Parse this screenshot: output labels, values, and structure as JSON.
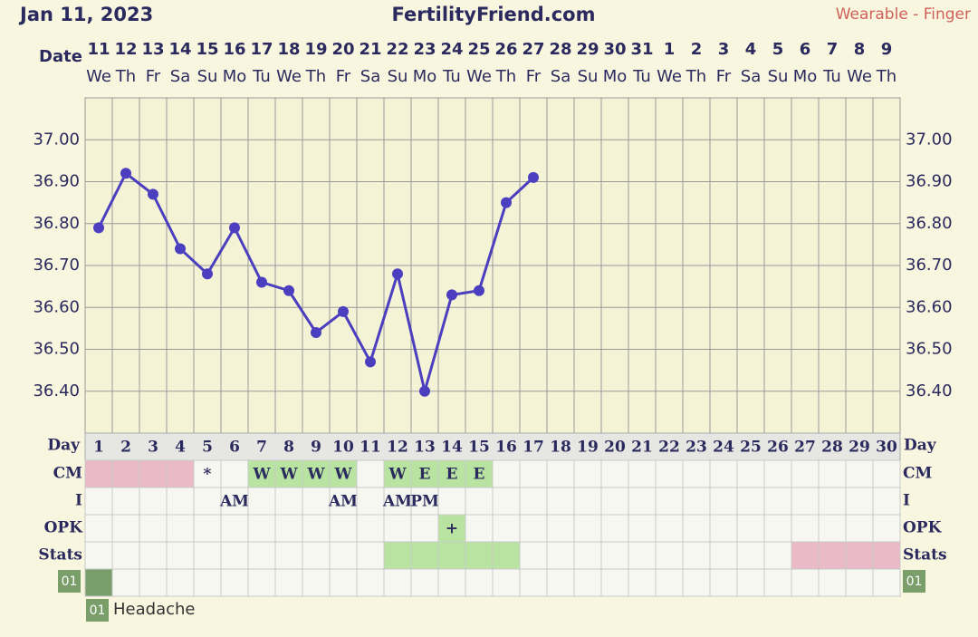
{
  "header": {
    "date": "Jan 11, 2023",
    "site": "FertilityFriend.com",
    "device": "Wearable - Finger"
  },
  "chart_data": {
    "type": "line",
    "x_label": "Date",
    "categories": [
      "11",
      "12",
      "13",
      "14",
      "15",
      "16",
      "17",
      "18",
      "19",
      "20",
      "21",
      "22",
      "23",
      "24",
      "25",
      "26",
      "27",
      "28",
      "29",
      "30",
      "31",
      "1",
      "2",
      "3",
      "4",
      "5",
      "6",
      "7",
      "8",
      "9"
    ],
    "weekdays": [
      "We",
      "Th",
      "Fr",
      "Sa",
      "Su",
      "Mo",
      "Tu",
      "We",
      "Th",
      "Fr",
      "Sa",
      "Su",
      "Mo",
      "Tu",
      "We",
      "Th",
      "Fr",
      "Sa",
      "Su",
      "Mo",
      "Tu",
      "We",
      "Th",
      "Fr",
      "Sa",
      "Su",
      "Mo",
      "Tu",
      "We",
      "Th"
    ],
    "series": [
      {
        "color": "#4b3fbf",
        "values": [
          36.79,
          36.92,
          36.87,
          36.74,
          36.68,
          36.79,
          36.66,
          36.64,
          36.54,
          36.59,
          36.47,
          36.68,
          36.4,
          36.63,
          36.64,
          36.85,
          36.91,
          null,
          null,
          null,
          null,
          null,
          null,
          null,
          null,
          null,
          null,
          null,
          null,
          null
        ]
      }
    ],
    "ylim": [
      36.3,
      37.1
    ],
    "yticks": [
      {
        "value": 36.4,
        "label": "36.40"
      },
      {
        "value": 36.5,
        "label": "36.50"
      },
      {
        "value": 36.6,
        "label": "36.60"
      },
      {
        "value": 36.7,
        "label": "36.70"
      },
      {
        "value": 36.8,
        "label": "36.80"
      },
      {
        "value": 36.9,
        "label": "36.90"
      },
      {
        "value": 37.0,
        "label": "37.00"
      }
    ],
    "grid": true
  },
  "table": {
    "day_label": "Day",
    "days": [
      1,
      2,
      3,
      4,
      5,
      6,
      7,
      8,
      9,
      10,
      11,
      12,
      13,
      14,
      15,
      16,
      17,
      18,
      19,
      20,
      21,
      22,
      23,
      24,
      25,
      26,
      27,
      28,
      29,
      30
    ],
    "rows": [
      {
        "label": "CM",
        "cells": [
          {
            "color": "#ebbac8"
          },
          {
            "color": "#ebbac8"
          },
          {
            "color": "#ebbac8"
          },
          {
            "color": "#ebbac8"
          },
          {
            "text": "*"
          },
          null,
          {
            "text": "W",
            "color": "#b8e3a0"
          },
          {
            "text": "W",
            "color": "#b8e3a0"
          },
          {
            "text": "W",
            "color": "#b8e3a0"
          },
          {
            "text": "W",
            "color": "#b8e3a0"
          },
          null,
          {
            "text": "W",
            "color": "#b8e3a0"
          },
          {
            "text": "E",
            "color": "#b8e3a0"
          },
          {
            "text": "E",
            "color": "#b8e3a0"
          },
          {
            "text": "E",
            "color": "#b8e3a0"
          },
          null,
          null,
          null,
          null,
          null,
          null,
          null,
          null,
          null,
          null,
          null,
          null,
          null,
          null,
          null
        ]
      },
      {
        "label": "I",
        "cells": [
          null,
          null,
          null,
          null,
          null,
          {
            "text": "AM"
          },
          null,
          null,
          null,
          {
            "text": "AM"
          },
          null,
          {
            "text": "AM"
          },
          {
            "text": "PM"
          },
          null,
          null,
          null,
          null,
          null,
          null,
          null,
          null,
          null,
          null,
          null,
          null,
          null,
          null,
          null,
          null,
          null
        ]
      },
      {
        "label": "OPK",
        "cells": [
          null,
          null,
          null,
          null,
          null,
          null,
          null,
          null,
          null,
          null,
          null,
          null,
          null,
          {
            "text": "+",
            "color": "#b8e3a0"
          },
          null,
          null,
          null,
          null,
          null,
          null,
          null,
          null,
          null,
          null,
          null,
          null,
          null,
          null,
          null,
          null
        ]
      },
      {
        "label": "Stats",
        "cells": [
          null,
          null,
          null,
          null,
          null,
          null,
          null,
          null,
          null,
          null,
          null,
          {
            "color": "#b8e3a0"
          },
          {
            "color": "#b8e3a0"
          },
          {
            "color": "#b8e3a0"
          },
          {
            "color": "#b8e3a0"
          },
          {
            "color": "#b8e3a0"
          },
          null,
          null,
          null,
          null,
          null,
          null,
          null,
          null,
          null,
          null,
          {
            "color": "#ebbac8"
          },
          {
            "color": "#ebbac8"
          },
          {
            "color": "#ebbac8"
          },
          {
            "color": "#ebbac8"
          }
        ]
      }
    ]
  },
  "symptoms": [
    {
      "code": "01",
      "label": "Headache",
      "days": [
        1
      ],
      "color": "#7a9e6a"
    }
  ]
}
